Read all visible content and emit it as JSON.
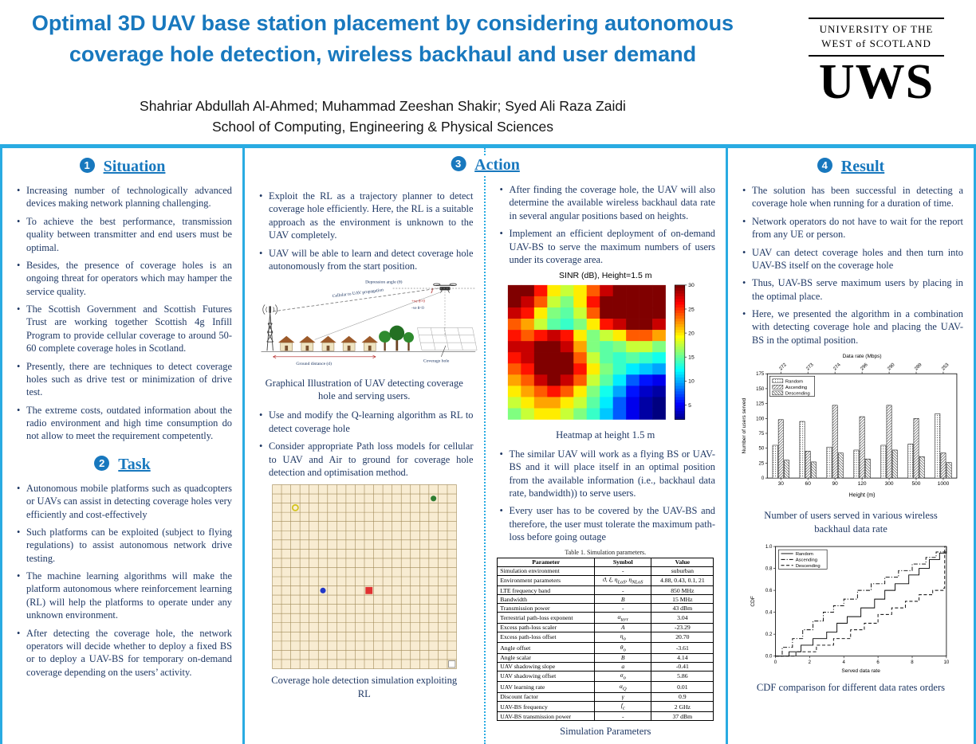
{
  "header": {
    "title_line1": "Optimal 3D UAV base station placement by considering autonomous",
    "title_line2": "coverage hole detection, wireless backhaul and user demand",
    "authors": "Shahriar Abdullah Al-Ahmed; Muhammad Zeeshan Shakir; Syed Ali Raza Zaidi",
    "affiliation": "School of Computing, Engineering & Physical Sciences",
    "logo": {
      "line1": "UNIVERSITY OF THE",
      "line2": "WEST of SCOTLAND",
      "acronym": "UWS"
    }
  },
  "sections": {
    "situation": {
      "number": "1",
      "title": "Situation",
      "bullets": [
        "Increasing number of technologically advanced devices making network planning challenging.",
        "To achieve the best performance, transmission quality between transmitter and end users must be optimal.",
        "Besides, the presence of coverage holes is an ongoing threat for operators which may hamper the service quality.",
        "The Scottish Government and Scottish Futures Trust are working together Scottish 4g Infill Program to provide cellular coverage to around 50-60 complete coverage holes in Scotland.",
        "Presently, there are techniques to detect coverage holes such as drive test or minimization of drive test.",
        "The extreme costs, outdated information about the radio environment and high time consumption do not allow to meet the requirement competently."
      ]
    },
    "task": {
      "number": "2",
      "title": "Task",
      "bullets": [
        "Autonomous mobile platforms such as quadcopters or UAVs can assist in detecting coverage holes very efficiently and cost-effectively",
        "Such platforms can be exploited (subject to flying regulations) to assist autonomous network drive testing.",
        "The machine learning algorithms will make the platform autonomous where reinforcement learning (RL) will help the platforms to operate under any unknown environment.",
        "After detecting the coverage hole, the network operators will decide whether to deploy a fixed BS or to deploy a UAV-BS for temporary on-demand coverage depending on the users’ activity."
      ]
    },
    "action": {
      "number": "3",
      "title": "Action",
      "left_top_bullets": [
        "Exploit the RL as a trajectory planner to detect coverage hole efficiently. Here, the RL is a suitable approach as the environment is unknown to the UAV completely.",
        "UAV will be able to learn and detect coverage hole autonomously from the start position."
      ],
      "illustration_caption": "Graphical Illustration of UAV detecting coverage hole and serving users.",
      "left_mid_bullets": [
        "Use and modify the Q-learning algorithm as RL to detect coverage hole",
        "Consider appropriate Path loss models for cellular to UAV and Air to ground for coverage hole detection and optimisation method."
      ],
      "rl_caption": "Coverage hole detection simulation exploiting RL",
      "right_top_bullets": [
        "After finding the coverage hole, the UAV will also determine the available wireless backhaul data rate in several angular positions based on heights.",
        "Implement an efficient deployment of on-demand UAV-BS to serve the maximum numbers of users under its coverage area."
      ],
      "right_mid_bullets": [
        "The similar UAV will work as a flying BS or UAV-BS and it will place itself in an optimal position from the available information (i.e., backhaul data rate, bandwidth)) to serve users.",
        "Every user has to be covered by the UAV-BS and therefore, the user must tolerate the maximum path-loss before going outage"
      ]
    },
    "result": {
      "number": "4",
      "title": "Result",
      "bullets": [
        "The solution has been successful in detecting a coverage hole when running for a duration of time.",
        "Network operators do not have to wait for the report from any UE or person.",
        "UAV can detect coverage holes and then turn into UAV-BS itself on the coverage hole",
        "Thus, UAV-BS serve maximum users by placing in the optimal place.",
        "Here, we presented the algorithm in a combination with detecting coverage hole and placing the UAV-BS in the optimal position."
      ],
      "caption_bar": "Number of users served in various wireless backhaul data rate",
      "caption_cdf": "CDF comparison for different data rates orders"
    }
  },
  "diagram": {
    "depression_angle": "Depression angle (θ)",
    "cellular_propagation": "Cellular to UAV propagation",
    "positive_theta": "+ve θ>0",
    "negative_theta": "-ve θ<0",
    "ground_distance": "Ground distance (d)",
    "coverage_hole": "Coverage hole"
  },
  "rl_sim": {
    "grid_size": 20,
    "markers": [
      {
        "shape": "open-circle",
        "color": "#d4c41e",
        "col": 3,
        "row": 3
      },
      {
        "shape": "dot",
        "color": "#2e7d32",
        "col": 18,
        "row": 2
      },
      {
        "shape": "dot",
        "color": "#2238c8",
        "col": 6,
        "row": 12
      },
      {
        "shape": "square",
        "color": "#e03131",
        "col": 11,
        "row": 12
      },
      {
        "shape": "open-square",
        "color": "#ffffff",
        "col": 20,
        "row": 20
      }
    ]
  },
  "table": {
    "title": "Table 1.  Simulation parameters.",
    "caption": "Simulation Parameters",
    "headers": [
      "Parameter",
      "Symbol",
      "Value"
    ],
    "rows": [
      [
        "Simulation environment",
        "-",
        "suburban"
      ],
      [
        "Environment parameters",
        "ϑ, ξ, η_LoS, η_NLoS",
        "4.88, 0.43, 0.1, 21"
      ],
      [
        "LTE frequency band",
        "-",
        "850 MHz"
      ],
      [
        "Bandwidth",
        "B",
        "15 MHz"
      ],
      [
        "Transmission power",
        "-",
        "43 dBm"
      ],
      [
        "Terrestrial path-loss exponent",
        "α_terr",
        "3.04"
      ],
      [
        "Excess path-loss scaler",
        "A",
        "-23.29"
      ],
      [
        "Excess path-loss offset",
        "η_o",
        "20.70"
      ],
      [
        "Angle offset",
        "θ_o",
        "-3.61"
      ],
      [
        "Angle scalar",
        "B",
        "4.14"
      ],
      [
        "UAV shadowing slope",
        "a",
        "-0.41"
      ],
      [
        "UAV shadowing offset",
        "σ_o",
        "5.86"
      ],
      [
        "UAV learning rate",
        "α_Q",
        "0.01"
      ],
      [
        "Discount factor",
        "γ",
        "0.9"
      ],
      [
        "UAV-BS frequency",
        "f_c",
        "2 GHz"
      ],
      [
        "UAV-BS transmission power",
        "-",
        "37 dBm"
      ]
    ]
  },
  "chart_data": [
    {
      "type": "heatmap",
      "title": "SINR (dB), Height=1.5 m",
      "caption": "Heatmap at height 1.5 m",
      "colormap": "jet",
      "vmin": 2,
      "vmax": 30,
      "colorbar_ticks": [
        5,
        10,
        15,
        20,
        25,
        30
      ],
      "values": [
        [
          30,
          30,
          26,
          20,
          18,
          20,
          24,
          28,
          30,
          30,
          30,
          30
        ],
        [
          30,
          28,
          24,
          18,
          16,
          20,
          26,
          30,
          30,
          30,
          30,
          30
        ],
        [
          28,
          26,
          20,
          16,
          15,
          18,
          24,
          30,
          30,
          30,
          30,
          30
        ],
        [
          24,
          22,
          18,
          15,
          14,
          16,
          20,
          26,
          28,
          30,
          30,
          28
        ],
        [
          26,
          24,
          26,
          28,
          26,
          20,
          16,
          18,
          20,
          24,
          24,
          22
        ],
        [
          28,
          28,
          30,
          30,
          28,
          22,
          16,
          15,
          16,
          18,
          18,
          16
        ],
        [
          26,
          28,
          30,
          30,
          30,
          24,
          18,
          15,
          14,
          15,
          14,
          13
        ],
        [
          24,
          26,
          30,
          30,
          30,
          26,
          20,
          16,
          14,
          12,
          11,
          10
        ],
        [
          22,
          24,
          28,
          30,
          28,
          24,
          18,
          15,
          12,
          8,
          6,
          5
        ],
        [
          20,
          22,
          24,
          26,
          24,
          20,
          16,
          13,
          10,
          6,
          4,
          3
        ],
        [
          18,
          20,
          22,
          22,
          20,
          18,
          15,
          12,
          8,
          5,
          3,
          2
        ],
        [
          16,
          18,
          20,
          20,
          18,
          16,
          14,
          11,
          8,
          5,
          3,
          2
        ]
      ]
    },
    {
      "type": "bar",
      "top_axis_label": "Data rate (Mbps)",
      "top_axis_ticks": [
        "272",
        "273",
        "274",
        "296",
        "290",
        "289",
        "253"
      ],
      "categories": [
        "30",
        "60",
        "90",
        "120",
        "300",
        "500",
        "1000"
      ],
      "xlabel": "Height (m)",
      "ylabel": "Number of users served",
      "ylim": [
        0,
        175
      ],
      "yticks": [
        0,
        25,
        50,
        75,
        100,
        125,
        150,
        175
      ],
      "legend_position": "upper left",
      "series": [
        {
          "name": "Random",
          "hatch": "dots",
          "values": [
            55,
            95,
            52,
            47,
            55,
            57,
            108
          ]
        },
        {
          "name": "Ascending",
          "hatch": "diagonal",
          "values": [
            98,
            45,
            122,
            103,
            122,
            100,
            42
          ]
        },
        {
          "name": "Descending",
          "hatch": "back-diagonal",
          "values": [
            30,
            27,
            42,
            32,
            47,
            36,
            26
          ]
        }
      ]
    },
    {
      "type": "line",
      "xlabel": "Served data rate",
      "ylabel": "CDF",
      "xlim": [
        0,
        10
      ],
      "ylim": [
        0,
        1
      ],
      "xticks": [
        0,
        2,
        4,
        6,
        8,
        10
      ],
      "yticks": [
        0.0,
        0.2,
        0.4,
        0.6,
        0.8,
        1.0
      ],
      "legend_position": "upper left",
      "series": [
        {
          "name": "Random",
          "style": "solid",
          "points": [
            [
              0,
              0
            ],
            [
              0.8,
              0.04
            ],
            [
              1.5,
              0.1
            ],
            [
              2.2,
              0.16
            ],
            [
              3,
              0.22
            ],
            [
              3.6,
              0.3
            ],
            [
              4.2,
              0.36
            ],
            [
              5,
              0.44
            ],
            [
              5.8,
              0.52
            ],
            [
              6.4,
              0.6
            ],
            [
              7,
              0.66
            ],
            [
              7.8,
              0.74
            ],
            [
              8.4,
              0.8
            ],
            [
              9,
              0.88
            ],
            [
              9.6,
              0.94
            ],
            [
              10,
              1
            ]
          ]
        },
        {
          "name": "Ascending",
          "style": "dashdot",
          "points": [
            [
              0,
              0
            ],
            [
              0.4,
              0.08
            ],
            [
              1,
              0.16
            ],
            [
              1.6,
              0.24
            ],
            [
              2.2,
              0.32
            ],
            [
              2.8,
              0.4
            ],
            [
              3.4,
              0.46
            ],
            [
              4,
              0.52
            ],
            [
              4.8,
              0.6
            ],
            [
              5.6,
              0.66
            ],
            [
              6.4,
              0.72
            ],
            [
              7.2,
              0.78
            ],
            [
              8,
              0.84
            ],
            [
              8.8,
              0.9
            ],
            [
              9.4,
              0.95
            ],
            [
              10,
              1
            ]
          ]
        },
        {
          "name": "Descending",
          "style": "dashed",
          "points": [
            [
              0,
              0
            ],
            [
              1.2,
              0.04
            ],
            [
              2.4,
              0.1
            ],
            [
              3.4,
              0.16
            ],
            [
              4.4,
              0.24
            ],
            [
              5.2,
              0.3
            ],
            [
              6,
              0.38
            ],
            [
              6.8,
              0.44
            ],
            [
              7.6,
              0.5
            ],
            [
              8.4,
              0.56
            ],
            [
              9.2,
              0.6
            ],
            [
              9.85,
              0.62
            ],
            [
              9.9,
              1
            ],
            [
              10,
              1
            ]
          ]
        }
      ]
    }
  ]
}
